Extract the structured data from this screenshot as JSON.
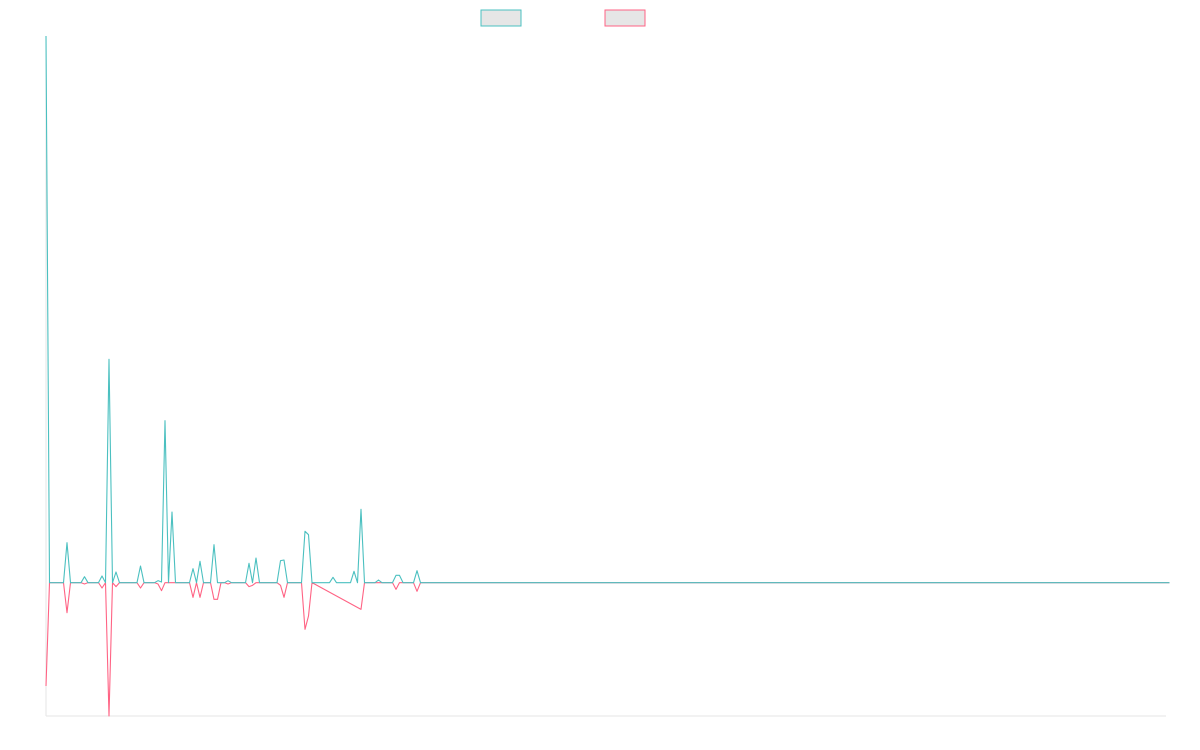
{
  "chart_data": {
    "type": "line",
    "title": "",
    "xlabel": "",
    "ylabel": "",
    "x_count": 321,
    "ylim": [
      -2.0,
      8.2
    ],
    "grid": false,
    "legend": {
      "placement": "top-center",
      "style": "box"
    },
    "series": [
      {
        "name": "",
        "color": "#4bc0c0",
        "fill": "#e6e6e6",
        "points": [
          [
            0,
            8.2
          ],
          [
            1,
            0
          ],
          [
            5,
            0
          ],
          [
            6,
            0.6
          ],
          [
            7,
            0
          ],
          [
            10,
            0
          ],
          [
            11,
            0.09
          ],
          [
            12,
            0
          ],
          [
            15,
            0
          ],
          [
            16,
            0.1
          ],
          [
            17,
            0
          ],
          [
            18,
            3.35
          ],
          [
            19,
            0
          ],
          [
            20,
            0.16
          ],
          [
            21,
            0
          ],
          [
            26,
            0
          ],
          [
            27,
            0.25
          ],
          [
            28,
            0
          ],
          [
            31,
            0
          ],
          [
            32,
            0.03
          ],
          [
            33,
            0.01
          ],
          [
            34,
            2.43
          ],
          [
            35,
            0
          ],
          [
            36,
            1.06
          ],
          [
            37,
            0
          ],
          [
            41,
            0
          ],
          [
            42,
            0.21
          ],
          [
            43,
            0
          ],
          [
            44,
            0.32
          ],
          [
            45,
            0
          ],
          [
            47,
            0
          ],
          [
            48,
            0.57
          ],
          [
            49,
            0
          ],
          [
            51,
            0
          ],
          [
            52,
            0.03
          ],
          [
            53,
            0
          ],
          [
            57,
            0
          ],
          [
            58,
            0.29
          ],
          [
            59,
            0
          ],
          [
            60,
            0.37
          ],
          [
            61,
            0
          ],
          [
            66,
            0
          ],
          [
            67,
            0.33
          ],
          [
            68,
            0.34
          ],
          [
            69,
            0
          ],
          [
            73,
            0
          ],
          [
            74,
            0.77
          ],
          [
            75,
            0.72
          ],
          [
            76,
            0
          ],
          [
            81,
            0
          ],
          [
            82,
            0.08
          ],
          [
            83,
            0
          ],
          [
            87,
            0
          ],
          [
            88,
            0.17
          ],
          [
            89,
            0
          ],
          [
            90,
            1.1
          ],
          [
            91,
            0
          ],
          [
            94,
            0
          ],
          [
            95,
            0.04
          ],
          [
            96,
            0
          ],
          [
            99,
            0
          ],
          [
            100,
            0.11
          ],
          [
            101,
            0.11
          ],
          [
            102,
            0
          ],
          [
            105,
            0
          ],
          [
            106,
            0.18
          ],
          [
            107,
            0
          ],
          [
            321,
            0
          ]
        ]
      },
      {
        "name": "",
        "color": "#ff6384",
        "fill": "#e6e6e6",
        "points": [
          [
            0,
            -1.55
          ],
          [
            1,
            0
          ],
          [
            5,
            0
          ],
          [
            6,
            -0.45
          ],
          [
            7,
            0
          ],
          [
            10,
            0
          ],
          [
            11,
            -0.02
          ],
          [
            12,
            0
          ],
          [
            15,
            0
          ],
          [
            16,
            -0.08
          ],
          [
            17,
            0
          ],
          [
            18,
            -2.0
          ],
          [
            19,
            0
          ],
          [
            20,
            -0.06
          ],
          [
            21,
            0
          ],
          [
            26,
            0
          ],
          [
            27,
            -0.08
          ],
          [
            28,
            0
          ],
          [
            31,
            0
          ],
          [
            32,
            -0.02
          ],
          [
            33,
            -0.12
          ],
          [
            34,
            0
          ],
          [
            41,
            0
          ],
          [
            42,
            -0.22
          ],
          [
            43,
            0
          ],
          [
            44,
            -0.22
          ],
          [
            45,
            0
          ],
          [
            47,
            0
          ],
          [
            48,
            -0.25
          ],
          [
            49,
            -0.25
          ],
          [
            50,
            0
          ],
          [
            51,
            0
          ],
          [
            52,
            -0.02
          ],
          [
            53,
            0
          ],
          [
            57,
            0
          ],
          [
            58,
            -0.06
          ],
          [
            59,
            -0.04
          ],
          [
            60,
            0
          ],
          [
            66,
            0
          ],
          [
            67,
            -0.04
          ],
          [
            68,
            -0.22
          ],
          [
            69,
            0
          ],
          [
            73,
            0
          ],
          [
            74,
            -0.7
          ],
          [
            75,
            -0.5
          ],
          [
            76,
            0
          ],
          [
            90,
            -0.4
          ],
          [
            91,
            0
          ],
          [
            99,
            0
          ],
          [
            100,
            -0.1
          ],
          [
            101,
            0
          ],
          [
            105,
            0
          ],
          [
            106,
            -0.13
          ],
          [
            107,
            0
          ],
          [
            321,
            0
          ]
        ]
      }
    ]
  }
}
